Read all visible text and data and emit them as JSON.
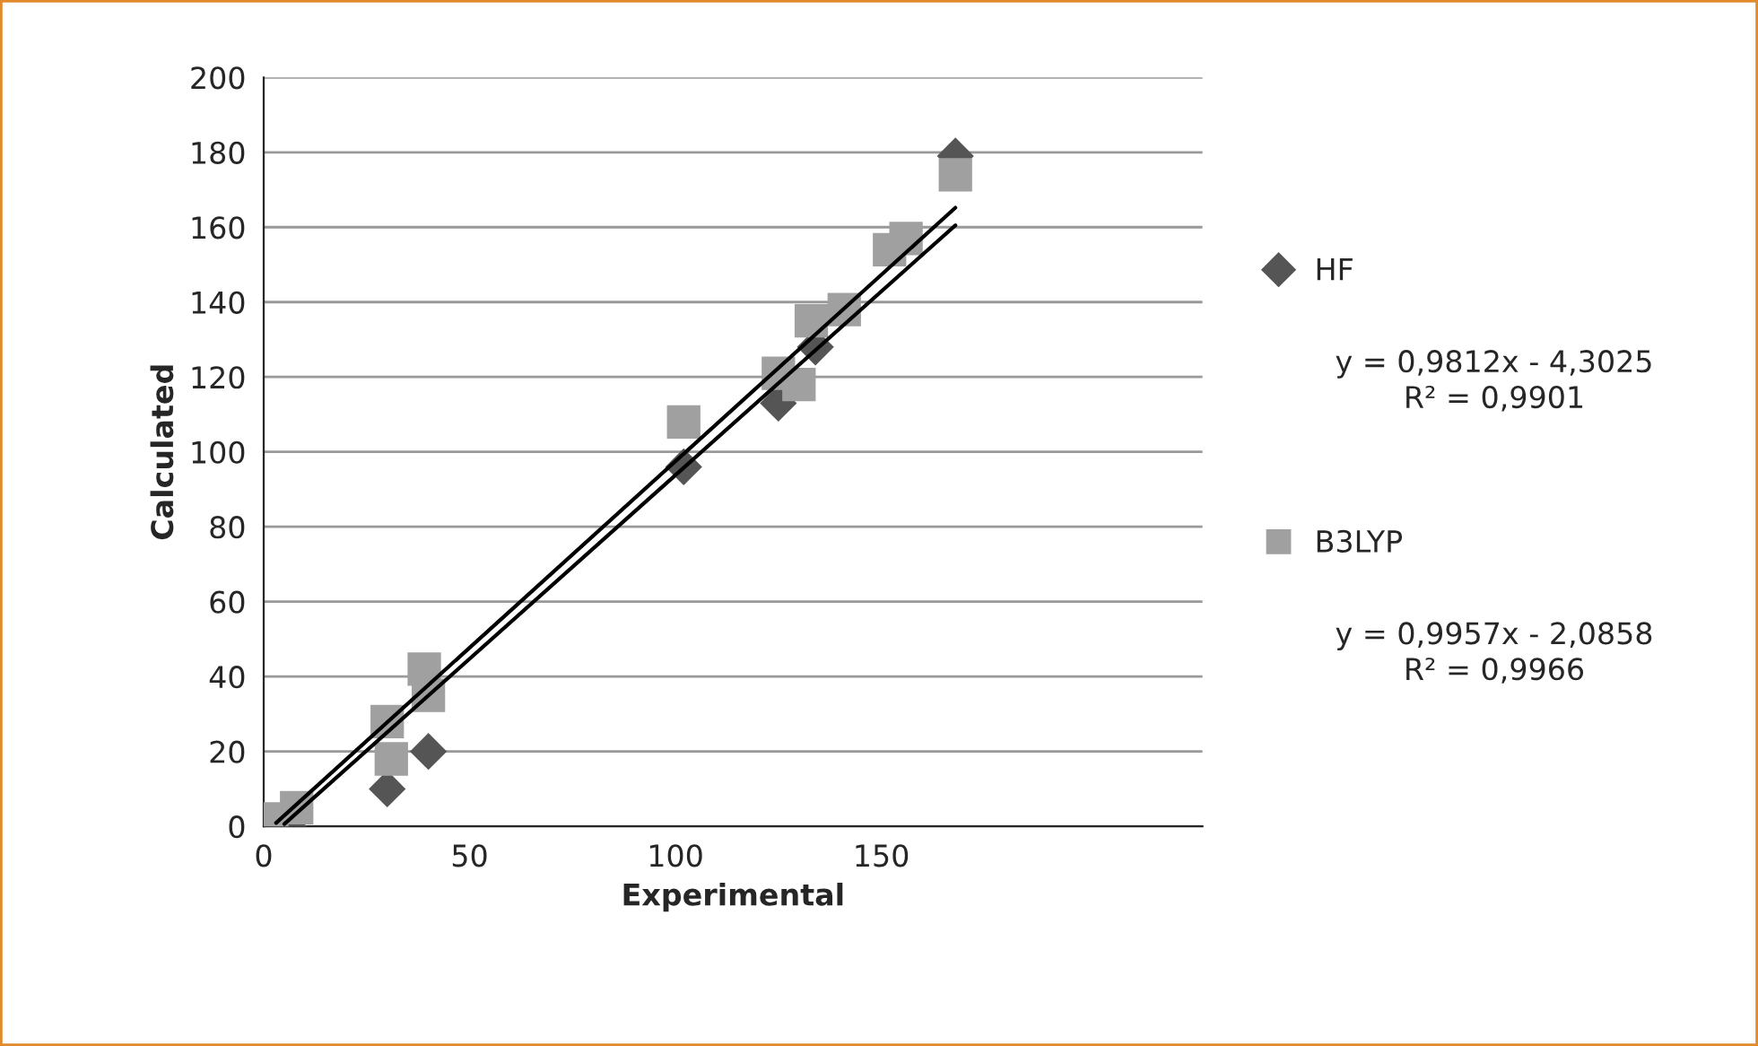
{
  "chart_data": {
    "type": "scatter",
    "xlabel": "Experimental",
    "ylabel": "Calculated",
    "xlim": [
      0,
      228
    ],
    "xticks": [
      0,
      50,
      100,
      150
    ],
    "ylim": [
      0,
      200
    ],
    "yticks": [
      0,
      20,
      40,
      60,
      80,
      100,
      120,
      140,
      160,
      180,
      200
    ],
    "grid": "y",
    "legend": "right",
    "series": [
      {
        "name": "HF",
        "color": "#555555",
        "marker": "diamond",
        "x": [
          6,
          30,
          40,
          102,
          125,
          134,
          168
        ],
        "values": [
          0,
          10,
          20,
          96,
          113,
          128,
          179
        ]
      },
      {
        "name": "B3LYP",
        "color": "#a0a0a0",
        "marker": "square",
        "x": [
          2,
          8,
          30,
          31,
          39,
          40,
          102,
          125,
          130,
          133,
          141,
          152,
          156,
          168
        ],
        "values": [
          2,
          5,
          28,
          18,
          42,
          35,
          108,
          121,
          118,
          135,
          138,
          154,
          157,
          174
        ]
      },
      {
        "type": "line",
        "color": "#000000",
        "marker": "none",
        "x": [
          5,
          168
        ],
        "values": [
          0.6,
          160.5
        ]
      },
      {
        "type": "line",
        "color": "#000000",
        "marker": "none",
        "x": [
          3,
          168
        ],
        "values": [
          0.9,
          165.2
        ]
      }
    ],
    "annotations": [
      "y = 0,9812x - 4,3025\nR² = 0,9901",
      "y = 0,9957x - 2,0858\nR² = 0,9966"
    ]
  }
}
